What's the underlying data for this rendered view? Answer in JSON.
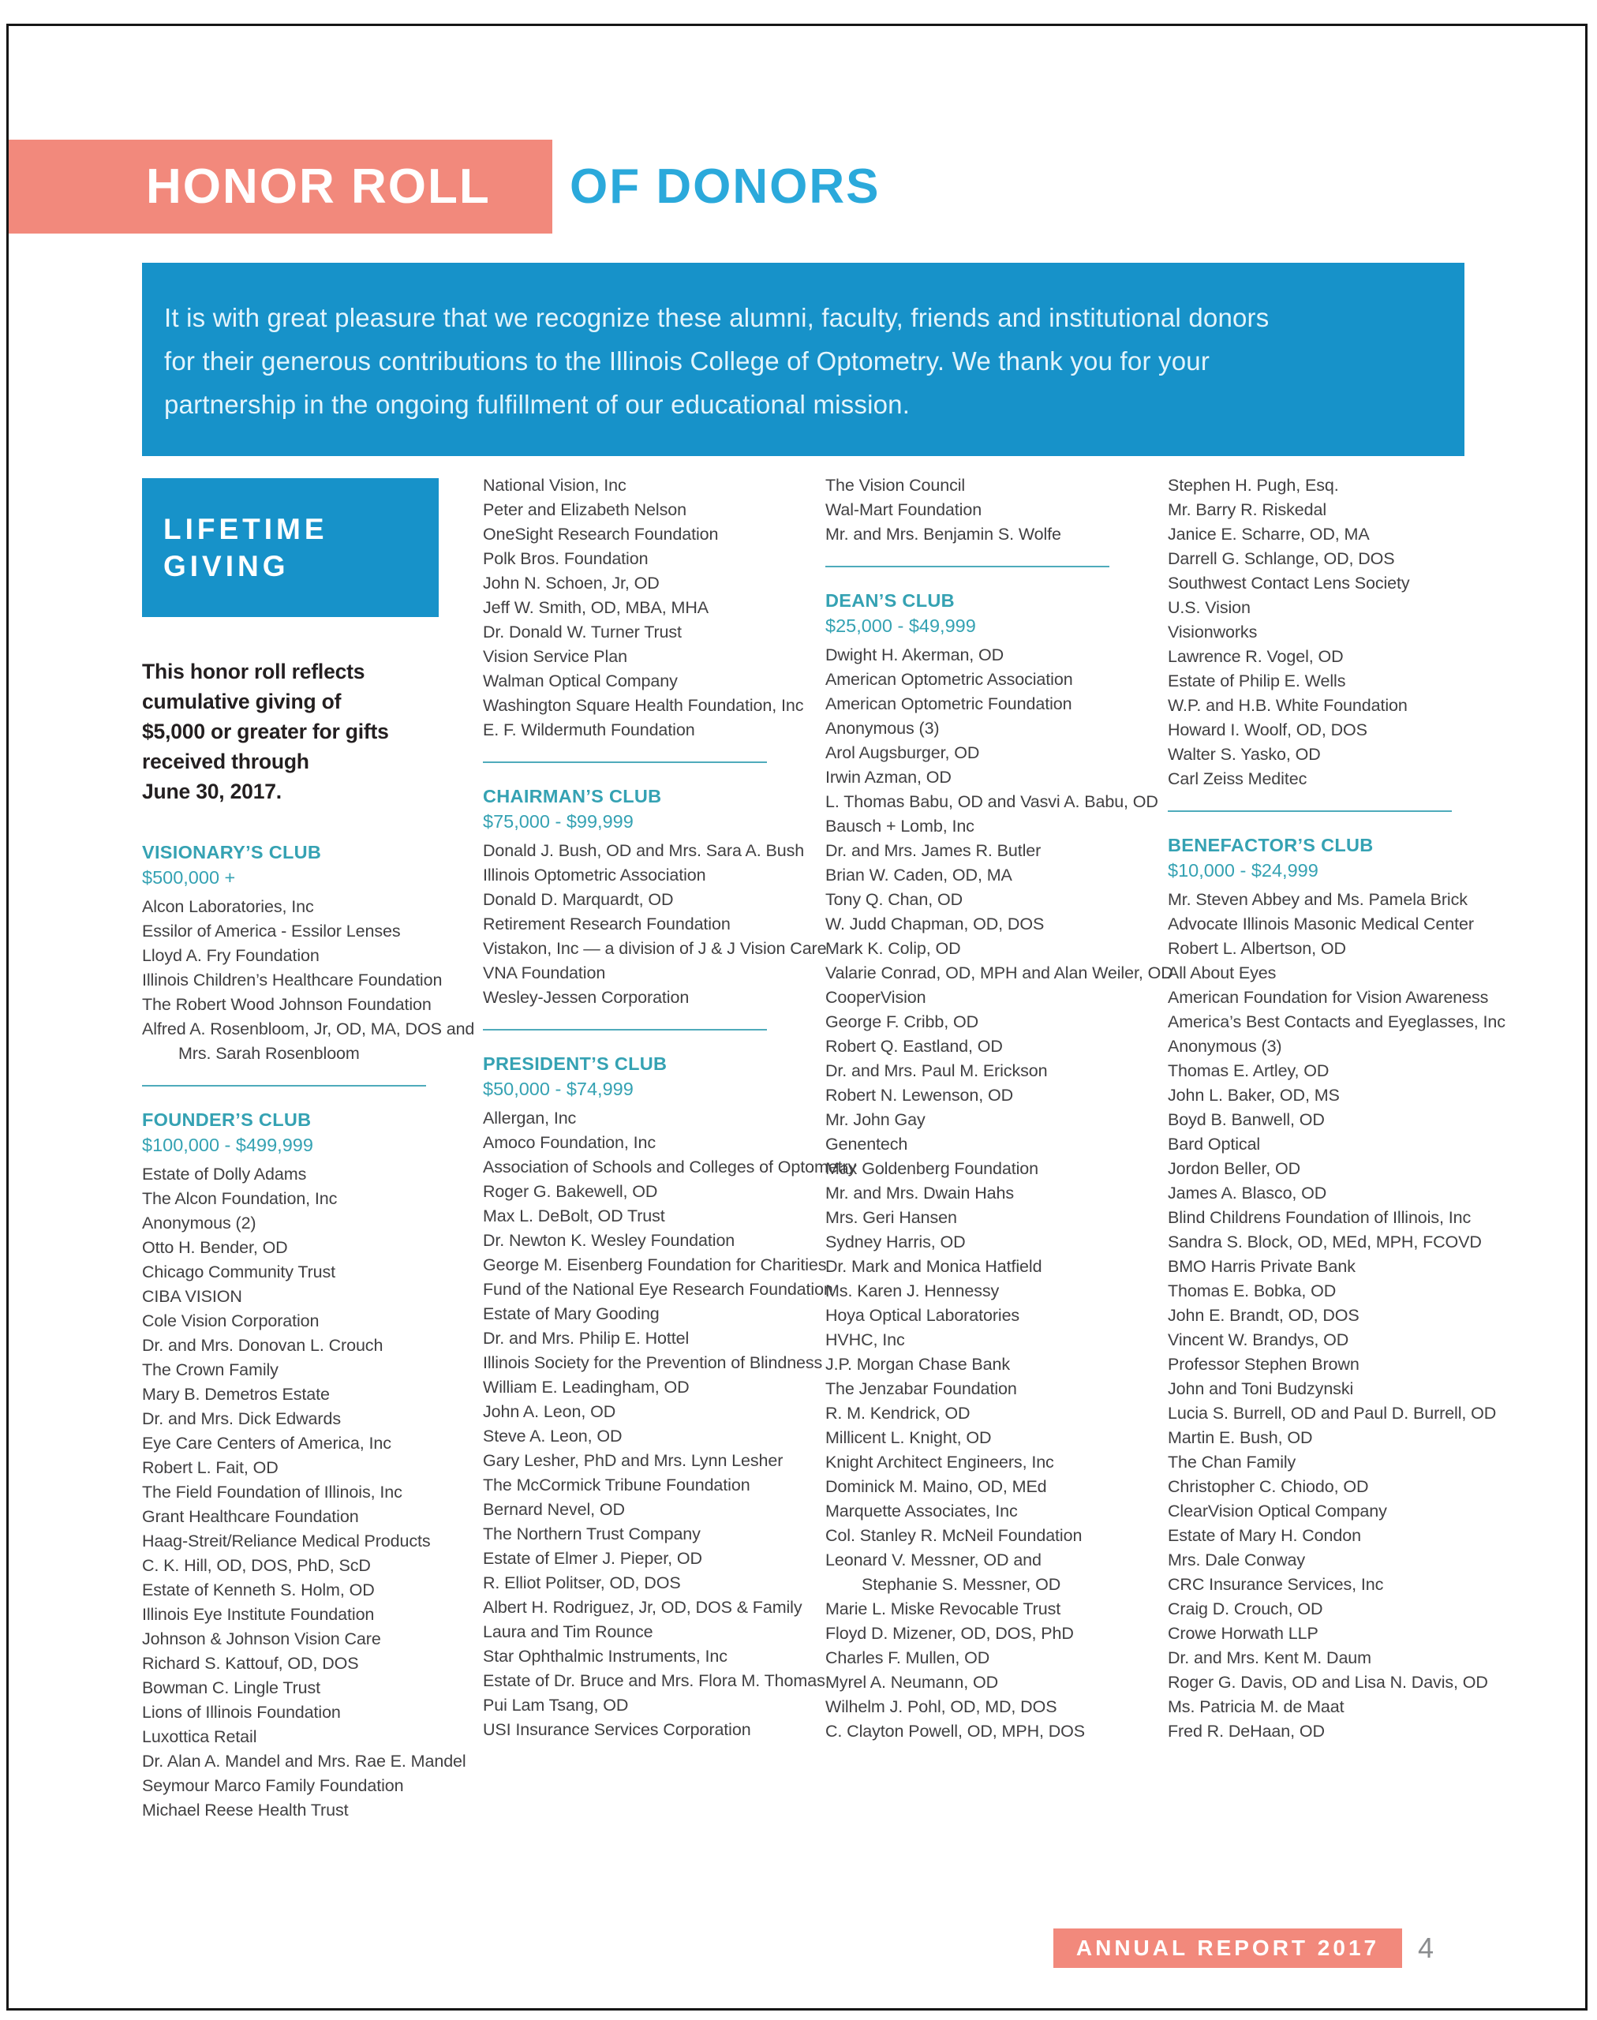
{
  "header": {
    "title_primary": "HONOR ROLL",
    "title_secondary": "OF DONORS"
  },
  "intro": {
    "text": "It is with great pleasure that we recognize these alumni, faculty, friends and institutional donors\nfor their generous contributions to the Illinois College of Optometry. We thank you for your\npartnership in the ongoing fulfillment of our educational mission."
  },
  "lifetime_giving": {
    "label": "LIFETIME\nGIVING",
    "note": "This honor roll reflects cumulative giving of\n$5,000 or greater for gifts received through\nJune 30, 2017."
  },
  "footer": {
    "label": "ANNUAL REPORT 2017",
    "page_number": "4"
  },
  "colors": {
    "salmon": "#F2897C",
    "header-blue": "#2BA9DB",
    "panel-blue": "#1792C9",
    "club-teal": "#35A2B3",
    "divider-teal": "#4FABBB",
    "body-text": "#414042",
    "note-text": "#231F20",
    "pagenum-gray": "#8A8C8E"
  },
  "columns": [
    {
      "blocks": [
        {
          "club": "VISIONARY’S CLUB",
          "range": "$500,000 +",
          "entries": [
            "Alcon Laboratories, Inc",
            "Essilor of America - Essilor Lenses",
            "Lloyd A. Fry Foundation",
            "Illinois Children’s Healthcare Foundation",
            "The Robert Wood Johnson Foundation",
            "Alfred A. Rosenbloom, Jr, OD, MA, DOS and",
            {
              "text": "Mrs. Sarah Rosenbloom",
              "indent": true
            }
          ]
        },
        {
          "club": "FOUNDER’S CLUB",
          "range": "$100,000 - $499,999",
          "entries": [
            "Estate of Dolly Adams",
            "The Alcon Foundation, Inc",
            "Anonymous (2)",
            "Otto H. Bender, OD",
            "Chicago Community Trust",
            "CIBA VISION",
            "Cole Vision Corporation",
            "Dr. and Mrs. Donovan L. Crouch",
            "The Crown Family",
            "Mary B. Demetros Estate",
            "Dr. and Mrs. Dick Edwards",
            "Eye Care Centers of America, Inc",
            "Robert L. Fait, OD",
            "The Field Foundation of Illinois, Inc",
            "Grant Healthcare Foundation",
            "Haag-Streit/Reliance Medical Products",
            "C. K. Hill, OD, DOS, PhD, ScD",
            "Estate of Kenneth S. Holm, OD",
            "Illinois Eye Institute Foundation",
            "Johnson & Johnson Vision Care",
            "Richard S. Kattouf, OD, DOS",
            "Bowman C. Lingle Trust",
            "Lions of Illinois Foundation",
            "Luxottica Retail",
            "Dr. Alan A. Mandel and Mrs. Rae E. Mandel",
            "Seymour Marco Family Foundation",
            "Michael Reese Health Trust"
          ]
        }
      ]
    },
    {
      "blocks": [
        {
          "entries": [
            "National Vision, Inc",
            "Peter and Elizabeth Nelson",
            "OneSight Research Foundation",
            "Polk Bros. Foundation",
            "John N. Schoen, Jr, OD",
            "Jeff W. Smith, OD, MBA, MHA",
            "Dr. Donald W. Turner Trust",
            "Vision Service Plan",
            "Walman Optical Company",
            "Washington Square Health Foundation, Inc",
            "E. F. Wildermuth Foundation"
          ]
        },
        {
          "club": "CHAIRMAN’S CLUB",
          "range": "$75,000 - $99,999",
          "entries": [
            "Donald J. Bush, OD and Mrs. Sara A. Bush",
            "Illinois Optometric Association",
            "Donald D. Marquardt, OD",
            "Retirement Research Foundation",
            "Vistakon, Inc — a division of J & J Vision Care",
            "VNA Foundation",
            "Wesley-Jessen Corporation"
          ]
        },
        {
          "club": "PRESIDENT’S CLUB",
          "range": "$50,000 - $74,999",
          "entries": [
            "Allergan, Inc",
            "Amoco Foundation, Inc",
            "Association of Schools and Colleges of Optometry",
            "Roger G. Bakewell, OD",
            "Max L. DeBolt, OD Trust",
            "Dr. Newton K. Wesley Foundation",
            "George M. Eisenberg Foundation for Charities",
            "Fund of the National Eye Research Foundation",
            "Estate of Mary Gooding",
            "Dr. and Mrs. Philip E. Hottel",
            "Illinois Society for the Prevention of Blindness",
            "William E. Leadingham, OD",
            "John A. Leon, OD",
            "Steve A. Leon, OD",
            "Gary Lesher, PhD and Mrs. Lynn Lesher",
            "The McCormick Tribune Foundation",
            "Bernard Nevel, OD",
            "The Northern Trust Company",
            "Estate of Elmer J. Pieper, OD",
            "R. Elliot Politser, OD, DOS",
            "Albert H. Rodriguez, Jr, OD, DOS & Family",
            "Laura and Tim Rounce",
            "Star Ophthalmic Instruments, Inc",
            "Estate of Dr. Bruce and Mrs. Flora M. Thomas",
            "Pui Lam Tsang, OD",
            "USI Insurance Services Corporation"
          ]
        }
      ]
    },
    {
      "blocks": [
        {
          "entries": [
            "The Vision Council",
            "Wal-Mart Foundation",
            "Mr. and Mrs. Benjamin S. Wolfe"
          ]
        },
        {
          "club": "DEAN’S CLUB",
          "range": "$25,000 - $49,999",
          "entries": [
            "Dwight H. Akerman, OD",
            "American Optometric Association",
            "American Optometric Foundation",
            "Anonymous (3)",
            "Arol Augsburger, OD",
            "Irwin Azman, OD",
            "L. Thomas Babu, OD and Vasvi A. Babu, OD",
            "Bausch + Lomb, Inc",
            "Dr. and Mrs. James R. Butler",
            "Brian W. Caden, OD, MA",
            "Tony Q. Chan, OD",
            "W. Judd Chapman, OD, DOS",
            "Mark K. Colip, OD",
            "Valarie Conrad, OD, MPH and Alan Weiler, OD",
            "CooperVision",
            "George F. Cribb, OD",
            "Robert Q. Eastland, OD",
            "Dr. and Mrs. Paul M. Erickson",
            "Robert N. Lewenson, OD",
            "Mr. John Gay",
            "Genentech",
            "Max Goldenberg Foundation",
            "Mr. and Mrs. Dwain Hahs",
            "Mrs. Geri Hansen",
            "Sydney Harris, OD",
            "Dr. Mark and Monica Hatfield",
            "Ms. Karen J. Hennessy",
            "Hoya Optical Laboratories",
            "HVHC, Inc",
            "J.P. Morgan Chase Bank",
            "The Jenzabar Foundation",
            "R. M. Kendrick, OD",
            "Millicent L. Knight, OD",
            "Knight Architect Engineers, Inc",
            "Dominick M. Maino, OD, MEd",
            "Marquette Associates, Inc",
            "Col. Stanley R. McNeil Foundation",
            "Leonard V. Messner, OD and",
            {
              "text": "Stephanie S. Messner, OD",
              "indent": true
            },
            "Marie L. Miske Revocable Trust",
            "Floyd D. Mizener, OD, DOS, PhD",
            "Charles F. Mullen, OD",
            "Myrel A. Neumann, OD",
            "Wilhelm J. Pohl, OD, MD, DOS",
            "C. Clayton Powell, OD, MPH, DOS"
          ]
        }
      ]
    },
    {
      "blocks": [
        {
          "entries": [
            "Stephen H. Pugh, Esq.",
            "Mr. Barry R. Riskedal",
            "Janice E. Scharre, OD, MA",
            "Darrell G. Schlange, OD, DOS",
            "Southwest Contact Lens Society",
            "U.S. Vision",
            "Visionworks",
            "Lawrence R. Vogel, OD",
            "Estate of Philip E. Wells",
            "W.P. and H.B. White Foundation",
            "Howard I. Woolf, OD, DOS",
            "Walter S. Yasko, OD",
            "Carl Zeiss Meditec"
          ]
        },
        {
          "club": "BENEFACTOR’S CLUB",
          "range": "$10,000 - $24,999",
          "entries": [
            "Mr. Steven Abbey and Ms. Pamela Brick",
            "Advocate Illinois Masonic Medical Center",
            "Robert L. Albertson, OD",
            "All About Eyes",
            "American Foundation for Vision Awareness",
            "America’s Best Contacts and Eyeglasses, Inc",
            "Anonymous (3)",
            "Thomas E. Artley, OD",
            "John L. Baker, OD, MS",
            "Boyd B. Banwell, OD",
            "Bard Optical",
            "Jordon Beller, OD",
            "James A. Blasco, OD",
            "Blind Childrens Foundation of Illinois, Inc",
            "Sandra S. Block, OD, MEd, MPH, FCOVD",
            "BMO Harris Private Bank",
            "Thomas E. Bobka, OD",
            "John E. Brandt, OD, DOS",
            "Vincent W. Brandys, OD",
            "Professor Stephen Brown",
            "John and Toni Budzynski",
            "Lucia S. Burrell, OD and Paul D. Burrell, OD",
            "Martin E. Bush, OD",
            "The Chan Family",
            "Christopher C. Chiodo, OD",
            "ClearVision Optical Company",
            "Estate of Mary H. Condon",
            "Mrs. Dale Conway",
            "CRC Insurance Services, Inc",
            "Craig D. Crouch, OD",
            "Crowe Horwath LLP",
            "Dr. and Mrs. Kent M. Daum",
            "Roger G. Davis, OD and Lisa N. Davis, OD",
            "Ms. Patricia M. de Maat",
            "Fred R. DeHaan, OD"
          ]
        }
      ]
    }
  ]
}
